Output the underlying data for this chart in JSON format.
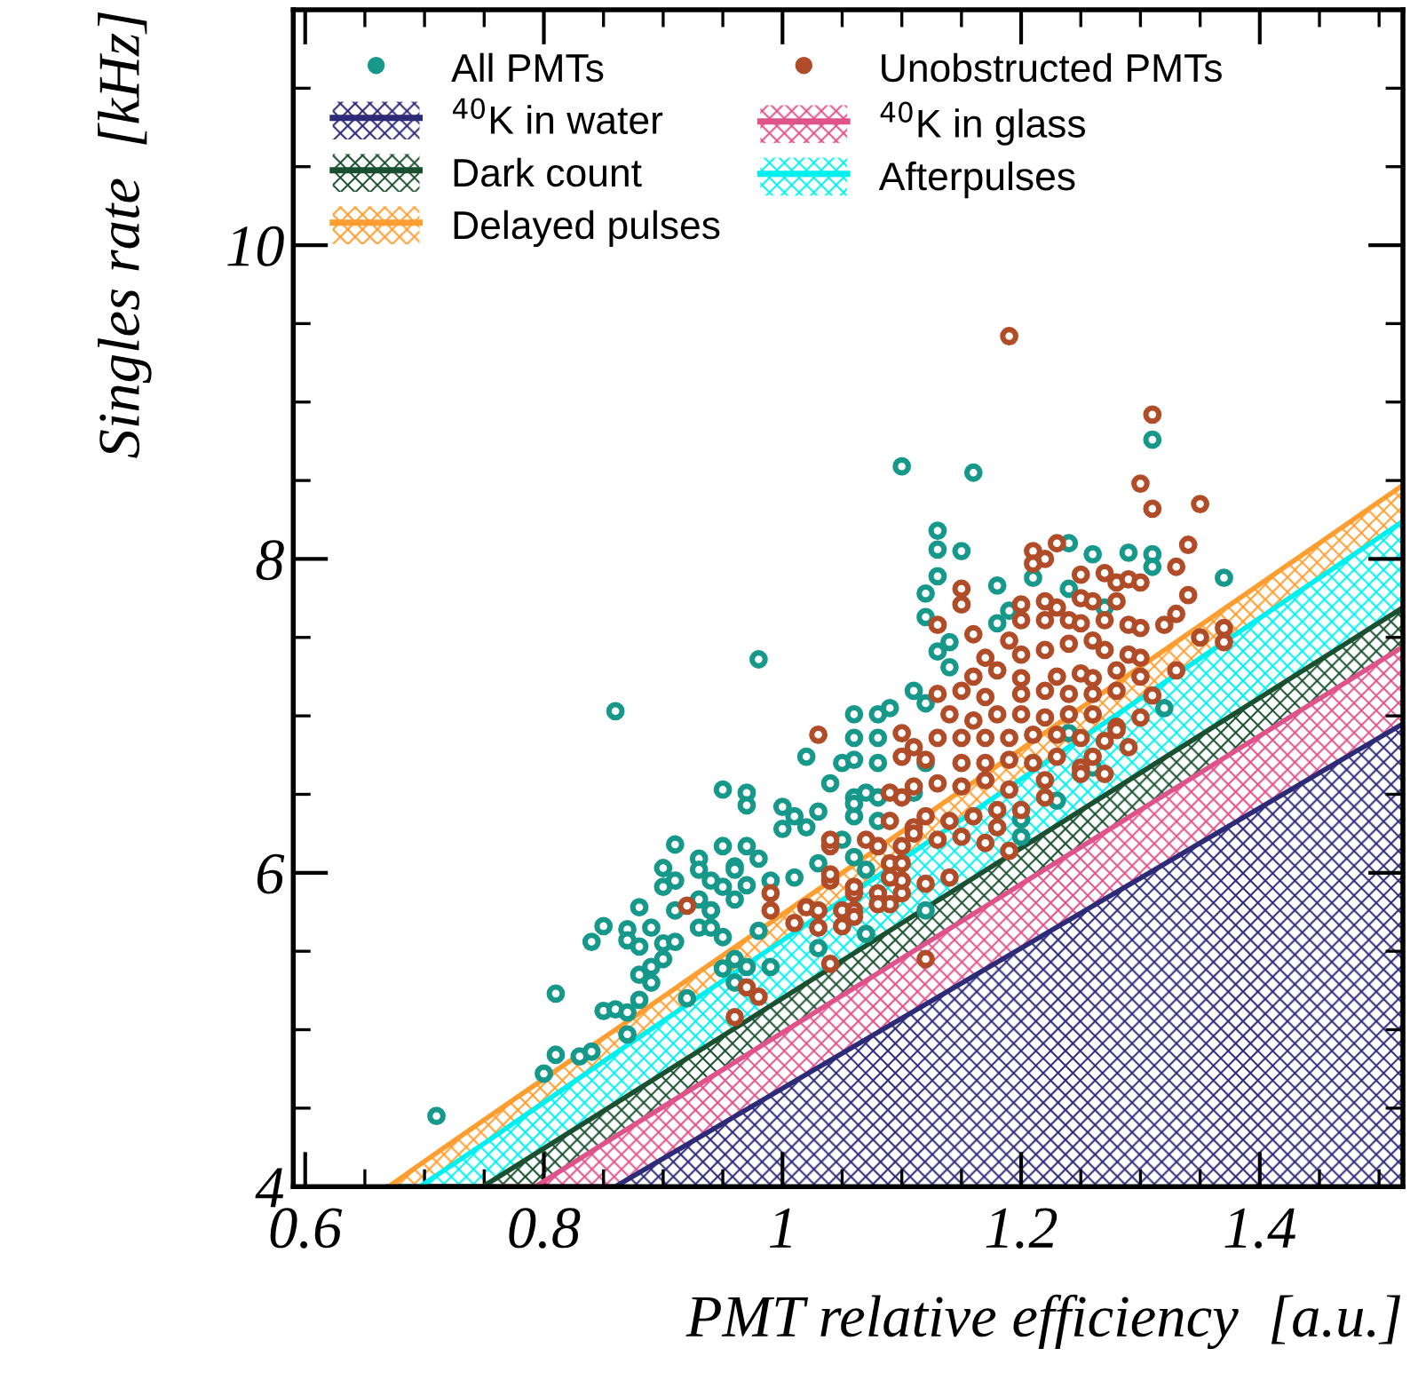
{
  "chart_data": {
    "type": "scatter",
    "xlabel": "PMT relative efficiency  [a.u.]",
    "ylabel": "Singles rate  [kHz]",
    "xlim": [
      0.59,
      1.52
    ],
    "ylim": [
      4,
      11.5
    ],
    "xticks": [
      0.6,
      0.8,
      1,
      1.2,
      1.4
    ],
    "yticks": [
      4,
      6,
      8,
      10
    ],
    "grid": false,
    "legend": "top",
    "series": [
      {
        "name": "$^{40}$K in water",
        "type": "area",
        "color": "#2d2a78",
        "x": [
          0.67,
          0.696,
          0.749,
          0.793,
          0.86,
          1.52
        ],
        "values": [
          4,
          4,
          4,
          4,
          4,
          6.95
        ]
      },
      {
        "name": "$^{40}$K in glass",
        "type": "area",
        "color": "#e0528a",
        "x": [
          0.67,
          0.696,
          0.749,
          0.793,
          0.86,
          1.52
        ],
        "values": [
          4,
          4,
          4,
          4,
          4.32,
          7.44
        ]
      },
      {
        "name": "Dark count",
        "type": "area",
        "color": "#1a5030",
        "x": [
          0.67,
          0.696,
          0.749,
          0.793,
          0.86,
          1.52
        ],
        "values": [
          4,
          4,
          4,
          4.21,
          4.53,
          7.69
        ]
      },
      {
        "name": "Afterpulses",
        "type": "area",
        "color": "#00f0f0",
        "x": [
          0.67,
          0.696,
          0.749,
          0.793,
          0.86,
          1.52
        ],
        "values": [
          4,
          4,
          4.27,
          4.5,
          4.85,
          8.24
        ]
      },
      {
        "name": "Delayed pulses",
        "type": "area",
        "color": "#ff9e30",
        "x": [
          0.67,
          0.696,
          0.749,
          0.793,
          0.86,
          1.52
        ],
        "values": [
          4,
          4.14,
          4.42,
          4.65,
          5.0,
          8.47
        ]
      },
      {
        "name": "All PMTs",
        "color": "#16988a",
        "marker": "circle",
        "x": [
          0.98,
          0.86,
          0.95,
          0.97,
          0.97,
          1.0,
          1.01,
          1.0,
          1.02,
          1.02,
          1.06,
          1.08,
          1.09,
          1.11,
          1.05,
          1.03,
          0.91,
          0.95,
          0.97,
          0.98,
          0.93,
          0.93,
          0.9,
          0.96,
          0.96,
          0.9,
          0.91,
          0.94,
          0.95,
          0.97,
          0.99,
          1.01,
          0.88,
          0.91,
          0.93,
          0.94,
          0.94,
          0.96,
          0.85,
          0.87,
          0.87,
          0.89,
          0.93,
          0.94,
          0.84,
          0.88,
          0.9,
          0.91,
          0.9,
          0.95,
          0.98,
          0.96,
          0.89,
          0.88,
          0.89,
          0.95,
          0.97,
          0.99,
          0.96,
          0.81,
          0.85,
          0.86,
          0.87,
          0.88,
          0.92,
          0.87,
          0.81,
          0.83,
          0.84,
          0.8,
          1.03,
          1.07,
          1.04,
          1.06,
          1.07,
          1.08,
          1.06,
          1.08,
          1.05,
          1.06,
          1.07,
          1.03,
          0.71,
          1.1,
          1.16,
          1.31,
          1.13,
          1.13,
          1.15,
          1.24,
          1.26,
          1.29,
          1.31,
          1.31,
          1.37,
          1.13,
          1.12,
          1.12,
          1.18,
          1.24,
          1.18,
          1.19,
          1.14,
          1.13,
          1.14,
          1.12,
          1.32,
          1.06,
          1.08,
          1.06,
          1.08,
          1.12,
          1.11,
          1.06,
          1.24,
          1.23,
          1.2,
          1.2,
          1.12,
          1.26,
          1.27,
          1.21
        ],
        "values": [
          7.36,
          7.03,
          6.53,
          6.51,
          6.43,
          6.42,
          6.36,
          6.28,
          6.29,
          6.74,
          7.01,
          7.01,
          7.05,
          7.16,
          6.7,
          6.39,
          6.18,
          6.17,
          6.17,
          6.09,
          6.09,
          6.02,
          6.03,
          6.04,
          6.02,
          5.91,
          5.95,
          5.95,
          5.91,
          5.92,
          5.95,
          5.97,
          5.78,
          5.76,
          5.83,
          5.76,
          5.76,
          5.83,
          5.66,
          5.64,
          5.57,
          5.65,
          5.65,
          5.65,
          5.56,
          5.53,
          5.55,
          5.56,
          5.45,
          5.59,
          5.63,
          5.45,
          5.4,
          5.35,
          5.3,
          5.39,
          5.4,
          5.4,
          5.3,
          5.23,
          5.12,
          5.13,
          5.11,
          5.19,
          5.2,
          4.97,
          4.84,
          4.83,
          4.86,
          4.72,
          5.52,
          5.61,
          6.57,
          6.48,
          6.51,
          6.48,
          6.36,
          6.33,
          6.21,
          6.1,
          6.02,
          6.06,
          4.45,
          8.59,
          8.55,
          8.76,
          8.18,
          8.06,
          8.05,
          8.1,
          8.03,
          8.04,
          8.03,
          7.95,
          7.88,
          7.89,
          7.78,
          7.63,
          7.83,
          7.81,
          7.59,
          7.67,
          7.47,
          7.41,
          7.31,
          7.08,
          7.05,
          6.86,
          6.86,
          6.72,
          6.7,
          6.7,
          6.51,
          6.44,
          6.89,
          6.46,
          6.34,
          6.23,
          5.76,
          6.67,
          7.69,
          7.88
        ]
      },
      {
        "name": "Unobstructed PMTs",
        "color": "#b04c28",
        "marker": "circle",
        "x": [
          1.03,
          1.1,
          0.92,
          0.99,
          0.99,
          1.02,
          1.01,
          1.03,
          1.03,
          1.05,
          1.06,
          1.06,
          1.05,
          1.04,
          1.04,
          1.04,
          1.04,
          1.07,
          1.08,
          1.09,
          1.1,
          1.1,
          1.08,
          1.09,
          1.1,
          1.1,
          1.09,
          1.1,
          1.1,
          1.11,
          1.09,
          1.11,
          0.97,
          0.98,
          0.96,
          1.04,
          1.19,
          1.31,
          1.3,
          1.31,
          1.35,
          1.23,
          1.21,
          1.22,
          1.21,
          1.34,
          1.33,
          1.25,
          1.27,
          1.28,
          1.29,
          1.3,
          1.34,
          1.33,
          1.15,
          1.15,
          1.2,
          1.22,
          1.23,
          1.25,
          1.26,
          1.28,
          1.2,
          1.22,
          1.24,
          1.25,
          1.27,
          1.29,
          1.3,
          1.32,
          1.13,
          1.16,
          1.19,
          1.35,
          1.37,
          1.37,
          1.17,
          1.2,
          1.22,
          1.24,
          1.26,
          1.27,
          1.29,
          1.3,
          1.33,
          1.3,
          1.31,
          1.16,
          1.18,
          1.2,
          1.23,
          1.25,
          1.26,
          1.28,
          1.13,
          1.15,
          1.17,
          1.2,
          1.22,
          1.24,
          1.26,
          1.28,
          1.14,
          1.16,
          1.18,
          1.2,
          1.22,
          1.24,
          1.26,
          1.28,
          1.3,
          1.13,
          1.15,
          1.17,
          1.19,
          1.21,
          1.23,
          1.25,
          1.27,
          1.28,
          1.29,
          1.12,
          1.15,
          1.17,
          1.19,
          1.21,
          1.23,
          1.25,
          1.26,
          1.11,
          1.13,
          1.15,
          1.17,
          1.19,
          1.22,
          1.22,
          1.25,
          1.27,
          1.12,
          1.14,
          1.16,
          1.18,
          1.2,
          1.18,
          1.11,
          1.13,
          1.15,
          1.17,
          1.19,
          1.06,
          1.09,
          1.12,
          1.14,
          1.06,
          1.08,
          1.12
        ],
        "values": [
          6.88,
          6.89,
          5.79,
          5.87,
          5.76,
          5.78,
          5.68,
          5.65,
          5.76,
          5.76,
          5.87,
          5.76,
          5.66,
          5.95,
          5.99,
          6.17,
          6.21,
          6.21,
          6.17,
          6.06,
          6.17,
          6.06,
          5.87,
          5.8,
          5.87,
          5.95,
          6.51,
          6.48,
          6.74,
          6.8,
          6.33,
          6.29,
          5.27,
          5.21,
          5.08,
          5.42,
          9.42,
          8.92,
          8.48,
          8.32,
          8.35,
          8.1,
          8.05,
          8.0,
          7.97,
          8.09,
          7.95,
          7.9,
          7.91,
          7.85,
          7.87,
          7.85,
          7.77,
          7.65,
          7.81,
          7.71,
          7.71,
          7.73,
          7.69,
          7.75,
          7.73,
          7.73,
          7.61,
          7.61,
          7.61,
          7.59,
          7.61,
          7.58,
          7.56,
          7.58,
          7.58,
          7.52,
          7.48,
          7.5,
          7.47,
          7.56,
          7.37,
          7.39,
          7.42,
          7.46,
          7.48,
          7.42,
          7.39,
          7.37,
          7.29,
          7.25,
          7.13,
          7.25,
          7.29,
          7.24,
          7.25,
          7.27,
          7.24,
          7.29,
          7.14,
          7.16,
          7.12,
          7.14,
          7.16,
          7.14,
          7.14,
          7.16,
          7.01,
          6.97,
          7.01,
          7.01,
          6.99,
          7.01,
          7.01,
          6.93,
          6.99,
          6.86,
          6.86,
          6.86,
          6.86,
          6.88,
          6.88,
          6.86,
          6.84,
          6.91,
          6.8,
          6.72,
          6.7,
          6.7,
          6.72,
          6.7,
          6.74,
          6.67,
          6.74,
          6.55,
          6.57,
          6.55,
          6.59,
          6.53,
          6.59,
          6.48,
          6.63,
          6.63,
          6.36,
          6.33,
          6.36,
          6.4,
          6.4,
          6.29,
          6.25,
          6.21,
          6.23,
          6.19,
          6.14,
          5.91,
          5.97,
          5.93,
          5.97,
          5.72,
          5.8,
          5.45
        ]
      }
    ]
  }
}
